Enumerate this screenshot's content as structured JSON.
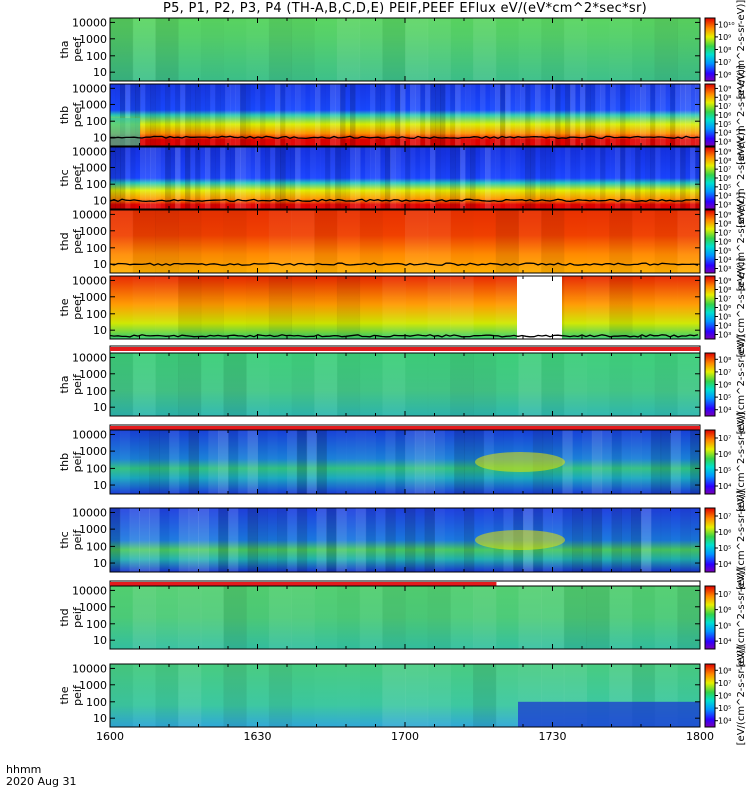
{
  "title": "P5, P1, P2, P3, P4 (TH-A,B,C,D,E) PEIF,PEEF EFlux eV/(eV*cm^2*sec*sr)",
  "footer": {
    "time_label": "hhmm",
    "date_label": "2020 Aug 31"
  },
  "colors": {
    "frame": "#000000",
    "flag_red": "#e41a1c",
    "flag_white": "#ffffff"
  },
  "chart_data": [
    {
      "type": "heatmap",
      "title": "P5, P1, P2, P3, P4 (TH-A,B,C,D,E) PEIF,PEEF EFlux eV/(eV*cm^2*sec*sr)",
      "x": {
        "range": [
          "1600",
          "1800"
        ],
        "ticks": [
          "1600",
          "1630",
          "1700",
          "1730",
          "1800"
        ]
      },
      "y_scale": "log",
      "colormap": "rainbow",
      "panels": [
        {
          "ylabel": [
            "tha",
            "peef"
          ],
          "yticks": [
            "10000",
            "1000",
            "100",
            "10"
          ],
          "colorbar_ticks": [
            "10⁶",
            "10⁷",
            "10⁸",
            "10⁹",
            "10¹⁰"
          ],
          "colorbar_label": "[eV/(cm^2-s-sr-eV)]",
          "flag": "none"
        },
        {
          "ylabel": [
            "thb",
            "peef"
          ],
          "yticks": [
            "10000",
            "1000",
            "100",
            "10"
          ],
          "colorbar_ticks": [
            "10³",
            "10⁴",
            "10⁵",
            "10⁶",
            "10⁷",
            "10⁸",
            "10⁹"
          ],
          "colorbar_label": "[eV/(cm^2-s-sr-eV)]",
          "flag": "none"
        },
        {
          "ylabel": [
            "thc",
            "peef"
          ],
          "yticks": [
            "10000",
            "1000",
            "100",
            "10"
          ],
          "colorbar_ticks": [
            "10³",
            "10⁴",
            "10⁵",
            "10⁶",
            "10⁷",
            "10⁸",
            "10⁹"
          ],
          "colorbar_label": "[eV/(cm^2-s-sr-eV)]",
          "flag": "none"
        },
        {
          "ylabel": [
            "thd",
            "peef"
          ],
          "yticks": [
            "10000",
            "1000",
            "100",
            "10"
          ],
          "colorbar_ticks": [
            "10³",
            "10⁴",
            "10⁵",
            "10⁶",
            "10⁷",
            "10⁸",
            "10⁹"
          ],
          "colorbar_label": "[eV/(cm^2-s-sr-eV)]",
          "flag": "none"
        },
        {
          "ylabel": [
            "the",
            "peef"
          ],
          "yticks": [
            "10000",
            "1000",
            "100",
            "10"
          ],
          "colorbar_ticks": [
            "10³",
            "10⁴",
            "10⁵",
            "10⁶",
            "10⁷",
            "10⁸",
            "10⁹"
          ],
          "colorbar_label": "[eV/(cm^2-s-sr-eV)]",
          "flag": "none"
        },
        {
          "ylabel": [
            "tha",
            "peif"
          ],
          "yticks": [
            "10000",
            "1000",
            "100",
            "10"
          ],
          "colorbar_ticks": [
            "10⁴",
            "10⁵",
            "10⁶",
            "10⁷",
            "10⁸"
          ],
          "colorbar_label": "[eV/(cm^2-s-sr-eV)]",
          "flag": "full"
        },
        {
          "ylabel": [
            "thb",
            "peif"
          ],
          "yticks": [
            "10000",
            "1000",
            "100",
            "10"
          ],
          "colorbar_ticks": [
            "10⁴",
            "10⁵",
            "10⁶",
            "10⁷"
          ],
          "colorbar_label": "[eV/(cm^2-s-sr-eV)]",
          "flag": "full"
        },
        {
          "ylabel": [
            "thc",
            "peif"
          ],
          "yticks": [
            "10000",
            "1000",
            "100",
            "10"
          ],
          "colorbar_ticks": [
            "10⁴",
            "10⁵",
            "10⁶",
            "10⁷"
          ],
          "colorbar_label": "[eV/(cm^2-s-sr-eV)]",
          "flag": "none"
        },
        {
          "ylabel": [
            "thd",
            "peif"
          ],
          "yticks": [
            "10000",
            "1000",
            "100",
            "10"
          ],
          "colorbar_ticks": [
            "10⁴",
            "10⁵",
            "10⁶",
            "10⁷"
          ],
          "colorbar_label": "[eV/(cm^2-s-sr-eV)]",
          "flag": "partial"
        },
        {
          "ylabel": [
            "the",
            "peif"
          ],
          "yticks": [
            "10000",
            "1000",
            "100",
            "10"
          ],
          "colorbar_ticks": [
            "10⁴",
            "10⁵",
            "10⁶",
            "10⁷",
            "10⁸"
          ],
          "colorbar_label": "[eV/(cm^2-s-sr-eV)]",
          "flag": "none"
        }
      ]
    }
  ]
}
